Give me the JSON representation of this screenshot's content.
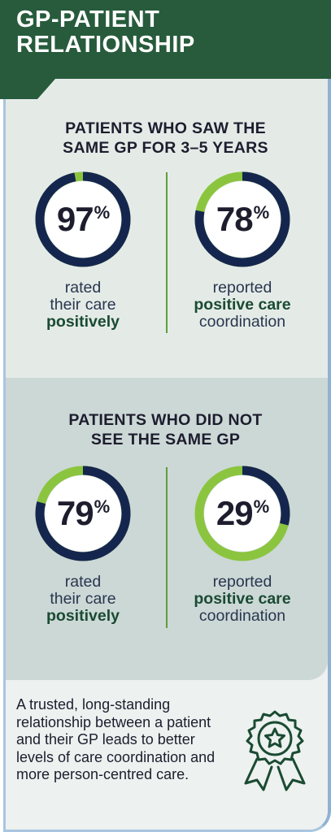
{
  "banner": {
    "title_line1": "GP-PATIENT",
    "title_line2": "RELATIONSHIP"
  },
  "section_same_gp": {
    "heading_line1": "PATIENTS WHO SAW THE",
    "heading_line2": "SAME GP FOR 3–5 YEARS",
    "stat_left": {
      "value": "97",
      "unit": "%",
      "caption_line1": "rated",
      "caption_line2": "their care",
      "caption_strong": "positively"
    },
    "stat_right": {
      "value": "78",
      "unit": "%",
      "caption_line1": "reported",
      "caption_strong": "positive care",
      "caption_line3": "coordination"
    }
  },
  "section_not_same_gp": {
    "heading_line1": "PATIENTS WHO DID NOT",
    "heading_line2": "SEE THE SAME GP",
    "stat_left": {
      "value": "79",
      "unit": "%",
      "caption_line1": "rated",
      "caption_line2": "their care",
      "caption_strong": "positively"
    },
    "stat_right": {
      "value": "29",
      "unit": "%",
      "caption_line1": "reported",
      "caption_strong": "positive care",
      "caption_line3": "coordination"
    }
  },
  "footer": {
    "text": "A trusted, long-standing relationship between a patient and their GP leads to better levels of care coordination and more person-centred care.",
    "icon": "award-ribbon-star-icon"
  },
  "colors": {
    "banner": "#275b3c",
    "ring_value": "#15264e",
    "ring_remainder": "#8bc53f",
    "accent_green": "#1a4b33",
    "divider": "#5e9e3c"
  },
  "chart_data": [
    {
      "type": "pie",
      "variant": "donut",
      "group": "PATIENTS WHO SAW THE SAME GP FOR 3–5 YEARS",
      "value": 97,
      "max": 100,
      "label": "rated their care positively"
    },
    {
      "type": "pie",
      "variant": "donut",
      "group": "PATIENTS WHO SAW THE SAME GP FOR 3–5 YEARS",
      "value": 78,
      "max": 100,
      "label": "reported positive care coordination"
    },
    {
      "type": "pie",
      "variant": "donut",
      "group": "PATIENTS WHO DID NOT SEE THE SAME GP",
      "value": 79,
      "max": 100,
      "label": "rated their care positively"
    },
    {
      "type": "pie",
      "variant": "donut",
      "group": "PATIENTS WHO DID NOT SEE THE SAME GP",
      "value": 29,
      "max": 100,
      "label": "reported positive care coordination"
    }
  ]
}
